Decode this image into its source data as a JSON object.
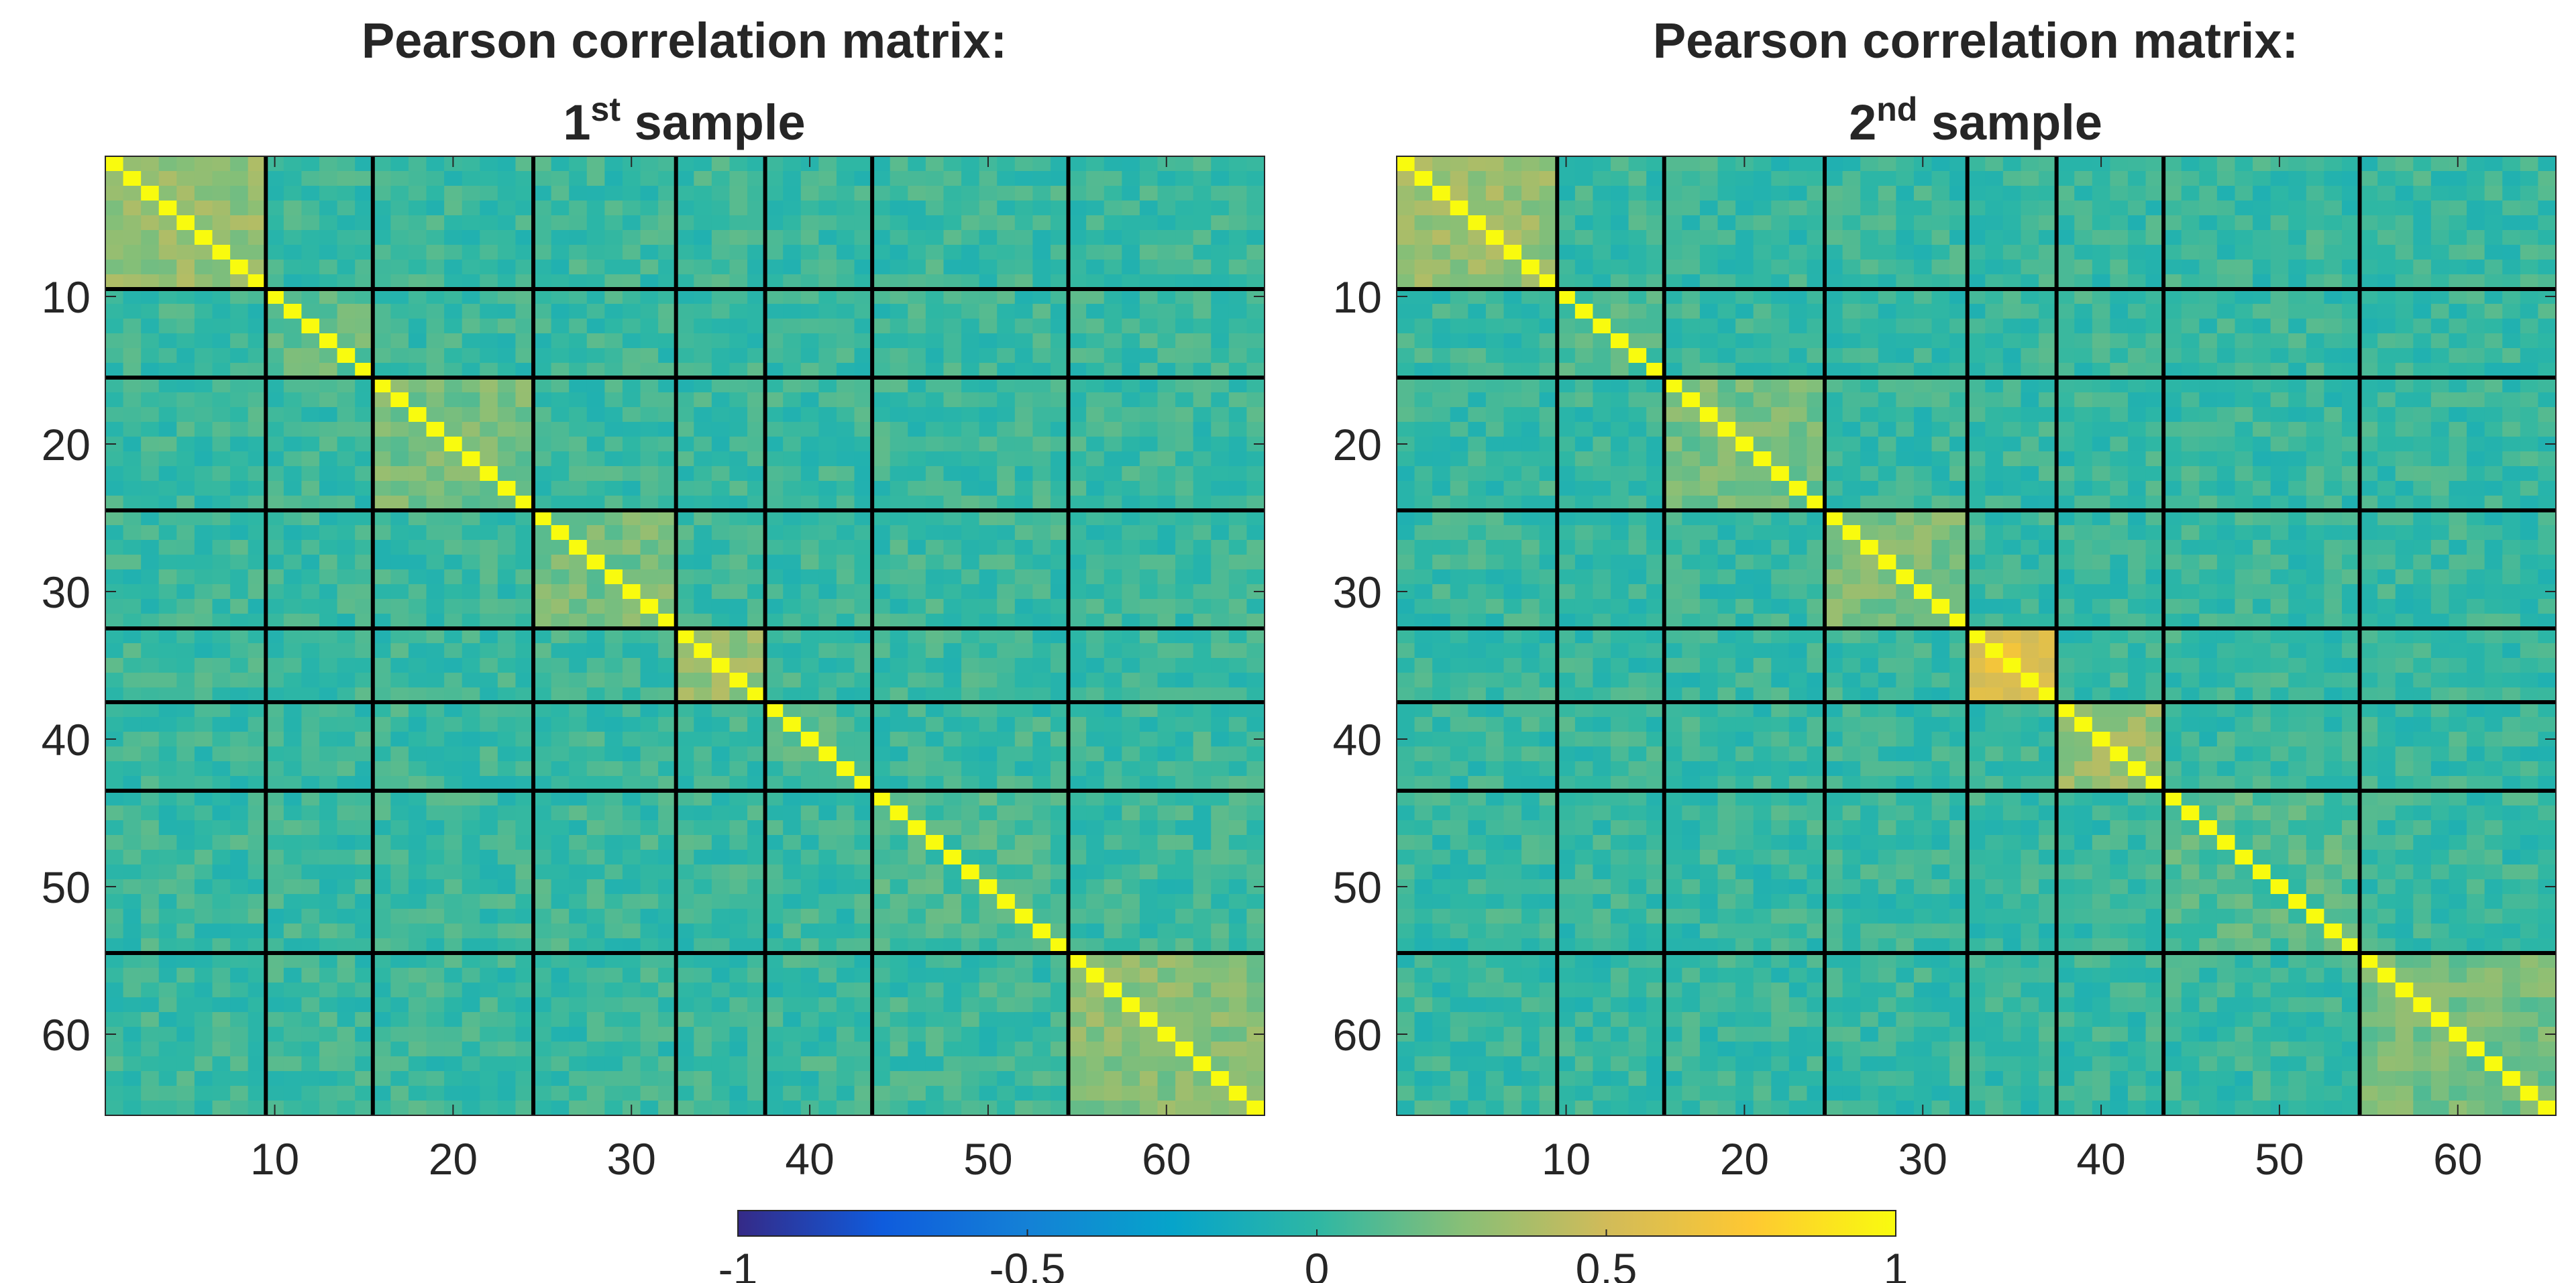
{
  "chart_data": [
    {
      "type": "heatmap",
      "title": "Pearson correlation matrix:",
      "subtitle_number": "1",
      "subtitle_suffix": "st",
      "subtitle_rest": " sample",
      "n": 65,
      "x_ticks": [
        10,
        20,
        30,
        40,
        50,
        60
      ],
      "y_ticks": [
        10,
        20,
        30,
        40,
        50,
        60
      ],
      "xlim": [
        0.5,
        65.5
      ],
      "ylim": [
        0.5,
        65.5
      ],
      "block_boundaries": [
        9.5,
        15.5,
        24.5,
        32.5,
        37.5,
        43.5,
        54.5
      ],
      "block_within_mean": [
        0.3,
        0.15,
        0.2,
        0.2,
        0.3,
        0.08,
        0.08,
        0.25
      ],
      "off_block_mean": 0.03,
      "diagonal_value": 1,
      "seed": 7
    },
    {
      "type": "heatmap",
      "title": "Pearson correlation matrix:",
      "subtitle_number": "2",
      "subtitle_suffix": "nd",
      "subtitle_rest": " sample",
      "n": 65,
      "x_ticks": [
        10,
        20,
        30,
        40,
        50,
        60
      ],
      "y_ticks": [
        10,
        20,
        30,
        40,
        50,
        60
      ],
      "xlim": [
        0.5,
        65.5
      ],
      "ylim": [
        0.5,
        65.5
      ],
      "block_boundaries": [
        9.5,
        15.5,
        24.5,
        32.5,
        37.5,
        43.5,
        54.5
      ],
      "block_within_mean": [
        0.3,
        0.1,
        0.2,
        0.22,
        0.6,
        0.3,
        0.1,
        0.2
      ],
      "off_block_mean": 0.02,
      "diagonal_value": 1,
      "seed": 19
    }
  ],
  "colorbar": {
    "min": -1,
    "max": 1,
    "tick_labels": [
      "-1",
      "-0.5",
      "0",
      "0.5",
      "1"
    ],
    "tick_values": [
      -1,
      -0.5,
      0,
      0.5,
      1
    ],
    "colormap": "parula",
    "stops": [
      "#352a87",
      "#0f5cdd",
      "#1481d6",
      "#06a4ca",
      "#2eb7a4",
      "#87bf77",
      "#d1bb59",
      "#fec832",
      "#f9fb0e"
    ]
  }
}
